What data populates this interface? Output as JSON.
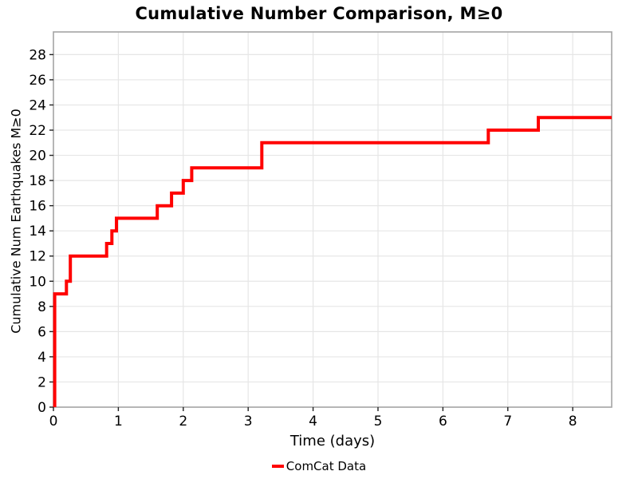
{
  "chart_data": {
    "type": "line",
    "subtype": "step-post",
    "title": "Cumulative Number Comparison, M≥0",
    "xlabel": "Time (days)",
    "ylabel": "Cumulative Num Earthquakes M≥0",
    "xlim": [
      0,
      8.6
    ],
    "ylim": [
      0,
      29.8
    ],
    "xticks": [
      0,
      1,
      2,
      3,
      4,
      5,
      6,
      7,
      8
    ],
    "yticks": [
      0,
      2,
      4,
      6,
      8,
      10,
      12,
      14,
      16,
      18,
      20,
      22,
      24,
      26,
      28
    ],
    "grid": true,
    "legend": {
      "position": "bottom-center",
      "entries": [
        {
          "label": "ComCat Data",
          "color": "#ff0000"
        }
      ]
    },
    "series": [
      {
        "name": "ComCat Data",
        "color": "#ff0000",
        "line_width": 4,
        "points": [
          [
            0.02,
            0
          ],
          [
            0.02,
            9
          ],
          [
            0.2,
            10
          ],
          [
            0.26,
            12
          ],
          [
            0.82,
            13
          ],
          [
            0.9,
            14
          ],
          [
            0.97,
            15
          ],
          [
            1.6,
            16
          ],
          [
            1.82,
            17
          ],
          [
            2.0,
            18
          ],
          [
            2.13,
            19
          ],
          [
            3.21,
            21
          ],
          [
            6.7,
            22
          ],
          [
            7.47,
            23
          ],
          [
            8.6,
            23
          ]
        ]
      }
    ]
  },
  "colors": {
    "line": "#ff0000",
    "grid": "#e6e6e6",
    "border": "#a4a4a4",
    "tick": "#222222",
    "text": "#000000",
    "background": "#ffffff"
  }
}
